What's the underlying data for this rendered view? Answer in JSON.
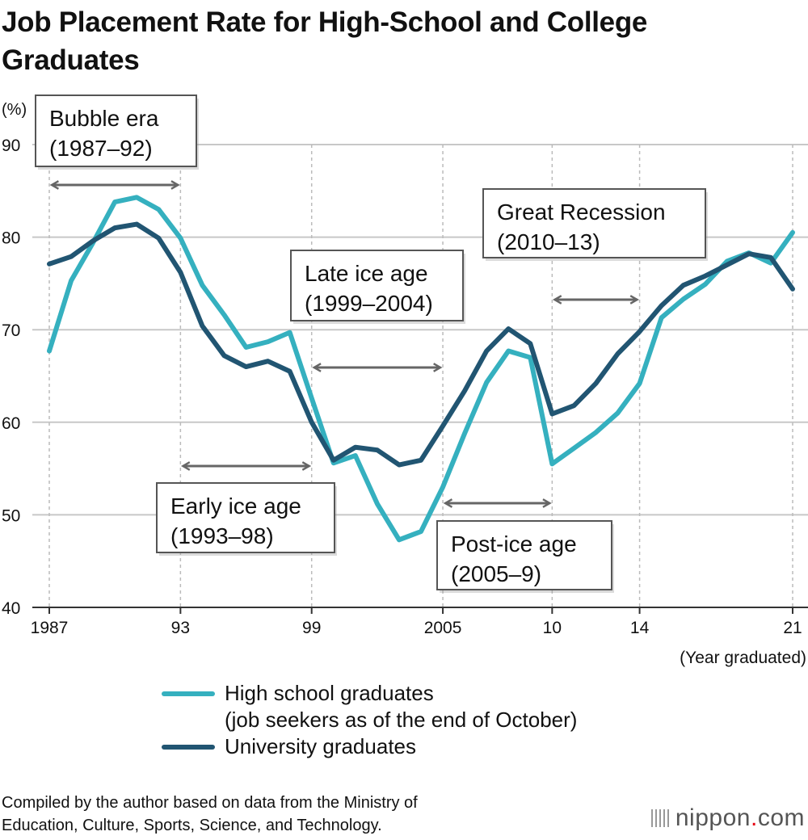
{
  "chart_data": {
    "type": "line",
    "title": "Job Placement Rate for High-School and College Graduates",
    "ylabel": "(%)",
    "xlabel": "(Year graduated)",
    "ylim": [
      40,
      90
    ],
    "yticks": [
      40,
      50,
      60,
      70,
      80,
      90
    ],
    "xlim": [
      1987,
      2021
    ],
    "xticks": [
      {
        "year": 1987,
        "label": "1987"
      },
      {
        "year": 1993,
        "label": "93"
      },
      {
        "year": 1999,
        "label": "99"
      },
      {
        "year": 2005,
        "label": "2005"
      },
      {
        "year": 2010,
        "label": "10"
      },
      {
        "year": 2014,
        "label": "14"
      },
      {
        "year": 2021,
        "label": "21"
      }
    ],
    "grid": "horizontal",
    "x": [
      1987,
      1988,
      1989,
      1990,
      1991,
      1992,
      1993,
      1994,
      1995,
      1996,
      1997,
      1998,
      1999,
      2000,
      2001,
      2002,
      2003,
      2004,
      2005,
      2006,
      2007,
      2008,
      2009,
      2010,
      2011,
      2012,
      2013,
      2014,
      2015,
      2016,
      2017,
      2018,
      2019,
      2020,
      2021
    ],
    "series": [
      {
        "name": "High school graduates",
        "name_line2": "(job seekers as of the end of October)",
        "color": "#35b0bf",
        "values": [
          67.7,
          75.3,
          79.4,
          83.8,
          84.3,
          83.0,
          79.9,
          74.8,
          71.6,
          68.1,
          68.7,
          69.7,
          62.6,
          55.6,
          56.4,
          51.2,
          47.3,
          48.2,
          53.0,
          58.8,
          64.3,
          67.7,
          67.0,
          55.5,
          57.2,
          58.9,
          61.0,
          64.2,
          71.3,
          73.3,
          74.9,
          77.4,
          78.3,
          77.2,
          80.5
        ]
      },
      {
        "name": "University graduates",
        "color": "#215572",
        "values": [
          77.1,
          77.9,
          79.6,
          81.0,
          81.4,
          79.9,
          76.2,
          70.4,
          67.2,
          66.0,
          66.6,
          65.5,
          60.0,
          55.9,
          57.3,
          57.0,
          55.4,
          55.9,
          59.6,
          63.4,
          67.7,
          70.1,
          68.5,
          60.9,
          61.8,
          64.2,
          67.4,
          69.8,
          72.6,
          74.8,
          75.8,
          77.0,
          78.2,
          77.8,
          74.4
        ]
      }
    ],
    "annotations": [
      {
        "label": "Bubble era",
        "range": "(1987–92)",
        "from": 1987,
        "to": 1993
      },
      {
        "label": "Early ice age",
        "range": "(1993–98)",
        "from": 1993,
        "to": 1999
      },
      {
        "label": "Late ice age",
        "range": "(1999–2004)",
        "from": 1999,
        "to": 2005
      },
      {
        "label": "Post-ice age",
        "range": "(2005–9)",
        "from": 2005,
        "to": 2010
      },
      {
        "label": "Great Recession",
        "range": "(2010–13)",
        "from": 2010,
        "to": 2014
      }
    ],
    "legend": "bottom"
  },
  "footnote": {
    "line1": "Compiled by the author based on data from the Ministry of",
    "line2": "Education, Culture, Sports, Science, and Technology."
  },
  "logo": {
    "name": "nippon",
    "dot": ".",
    "tld": "com"
  }
}
